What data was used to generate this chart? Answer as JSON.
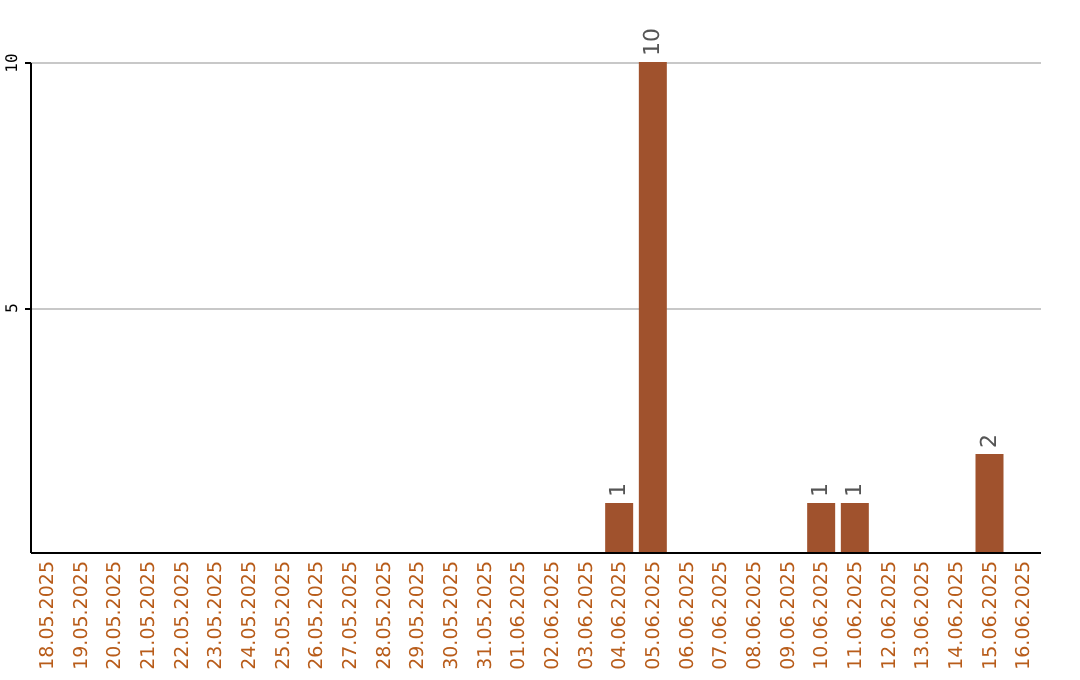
{
  "chart_data": {
    "type": "bar",
    "categories": [
      "18.05.2025",
      "19.05.2025",
      "20.05.2025",
      "21.05.2025",
      "22.05.2025",
      "23.05.2025",
      "24.05.2025",
      "25.05.2025",
      "26.05.2025",
      "27.05.2025",
      "28.05.2025",
      "29.05.2025",
      "30.05.2025",
      "31.05.2025",
      "01.06.2025",
      "02.06.2025",
      "03.06.2025",
      "04.06.2025",
      "05.06.2025",
      "06.06.2025",
      "07.06.2025",
      "08.06.2025",
      "09.06.2025",
      "10.06.2025",
      "11.06.2025",
      "12.06.2025",
      "13.06.2025",
      "14.06.2025",
      "15.06.2025",
      "16.06.2025"
    ],
    "values": [
      0,
      0,
      0,
      0,
      0,
      0,
      0,
      0,
      0,
      0,
      0,
      0,
      0,
      0,
      0,
      0,
      0,
      1,
      10,
      0,
      0,
      0,
      0,
      1,
      1,
      0,
      0,
      0,
      2,
      0
    ],
    "value_labels": [
      null,
      null,
      null,
      null,
      null,
      null,
      null,
      null,
      null,
      null,
      null,
      null,
      null,
      null,
      null,
      null,
      null,
      "1",
      "10",
      null,
      null,
      null,
      null,
      "1",
      "1",
      null,
      null,
      null,
      "2",
      null
    ],
    "color": "#a0522d",
    "ylim": [
      0,
      10
    ],
    "yticks": [
      5,
      10
    ],
    "grid": "y"
  }
}
